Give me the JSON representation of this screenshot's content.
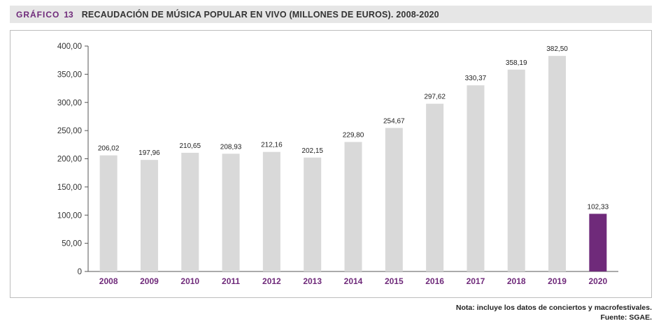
{
  "header": {
    "label": "GRÁFICO",
    "number": "13",
    "title": "RECAUDACIÓN DE MÚSICA POPULAR EN VIVO (MILLONES DE EUROS). 2008-2020"
  },
  "chart_data": {
    "type": "bar",
    "title": "RECAUDACIÓN DE MÚSICA POPULAR EN VIVO (MILLONES DE EUROS). 2008-2020",
    "xlabel": "",
    "ylabel": "",
    "ylim": [
      0,
      400
    ],
    "yticks": [
      0,
      50,
      100,
      150,
      200,
      250,
      300,
      350,
      400
    ],
    "ytick_labels": [
      "0",
      "50,00",
      "100,00",
      "150,00",
      "200,00",
      "250,00",
      "300,00",
      "350,00",
      "400,00"
    ],
    "categories": [
      "2008",
      "2009",
      "2010",
      "2011",
      "2012",
      "2013",
      "2014",
      "2015",
      "2016",
      "2017",
      "2018",
      "2019",
      "2020"
    ],
    "values": [
      206.02,
      197.96,
      210.65,
      208.93,
      212.16,
      202.15,
      229.8,
      254.67,
      297.62,
      330.37,
      358.19,
      382.5,
      102.33
    ],
    "value_labels": [
      "206,02",
      "197,96",
      "210,65",
      "208,93",
      "212,16",
      "202,15",
      "229,80",
      "254,67",
      "297,62",
      "330,37",
      "358,19",
      "382,50",
      "102,33"
    ],
    "highlight_index": 12,
    "colors": {
      "bar": "#d9d9d9",
      "highlight": "#6f2a7a",
      "category_label": "#6f2a7a",
      "axis": "#555555"
    }
  },
  "footer": {
    "note": "Nota: incluye los datos de conciertos y macrofestivales.",
    "source": "Fuente: SGAE."
  }
}
